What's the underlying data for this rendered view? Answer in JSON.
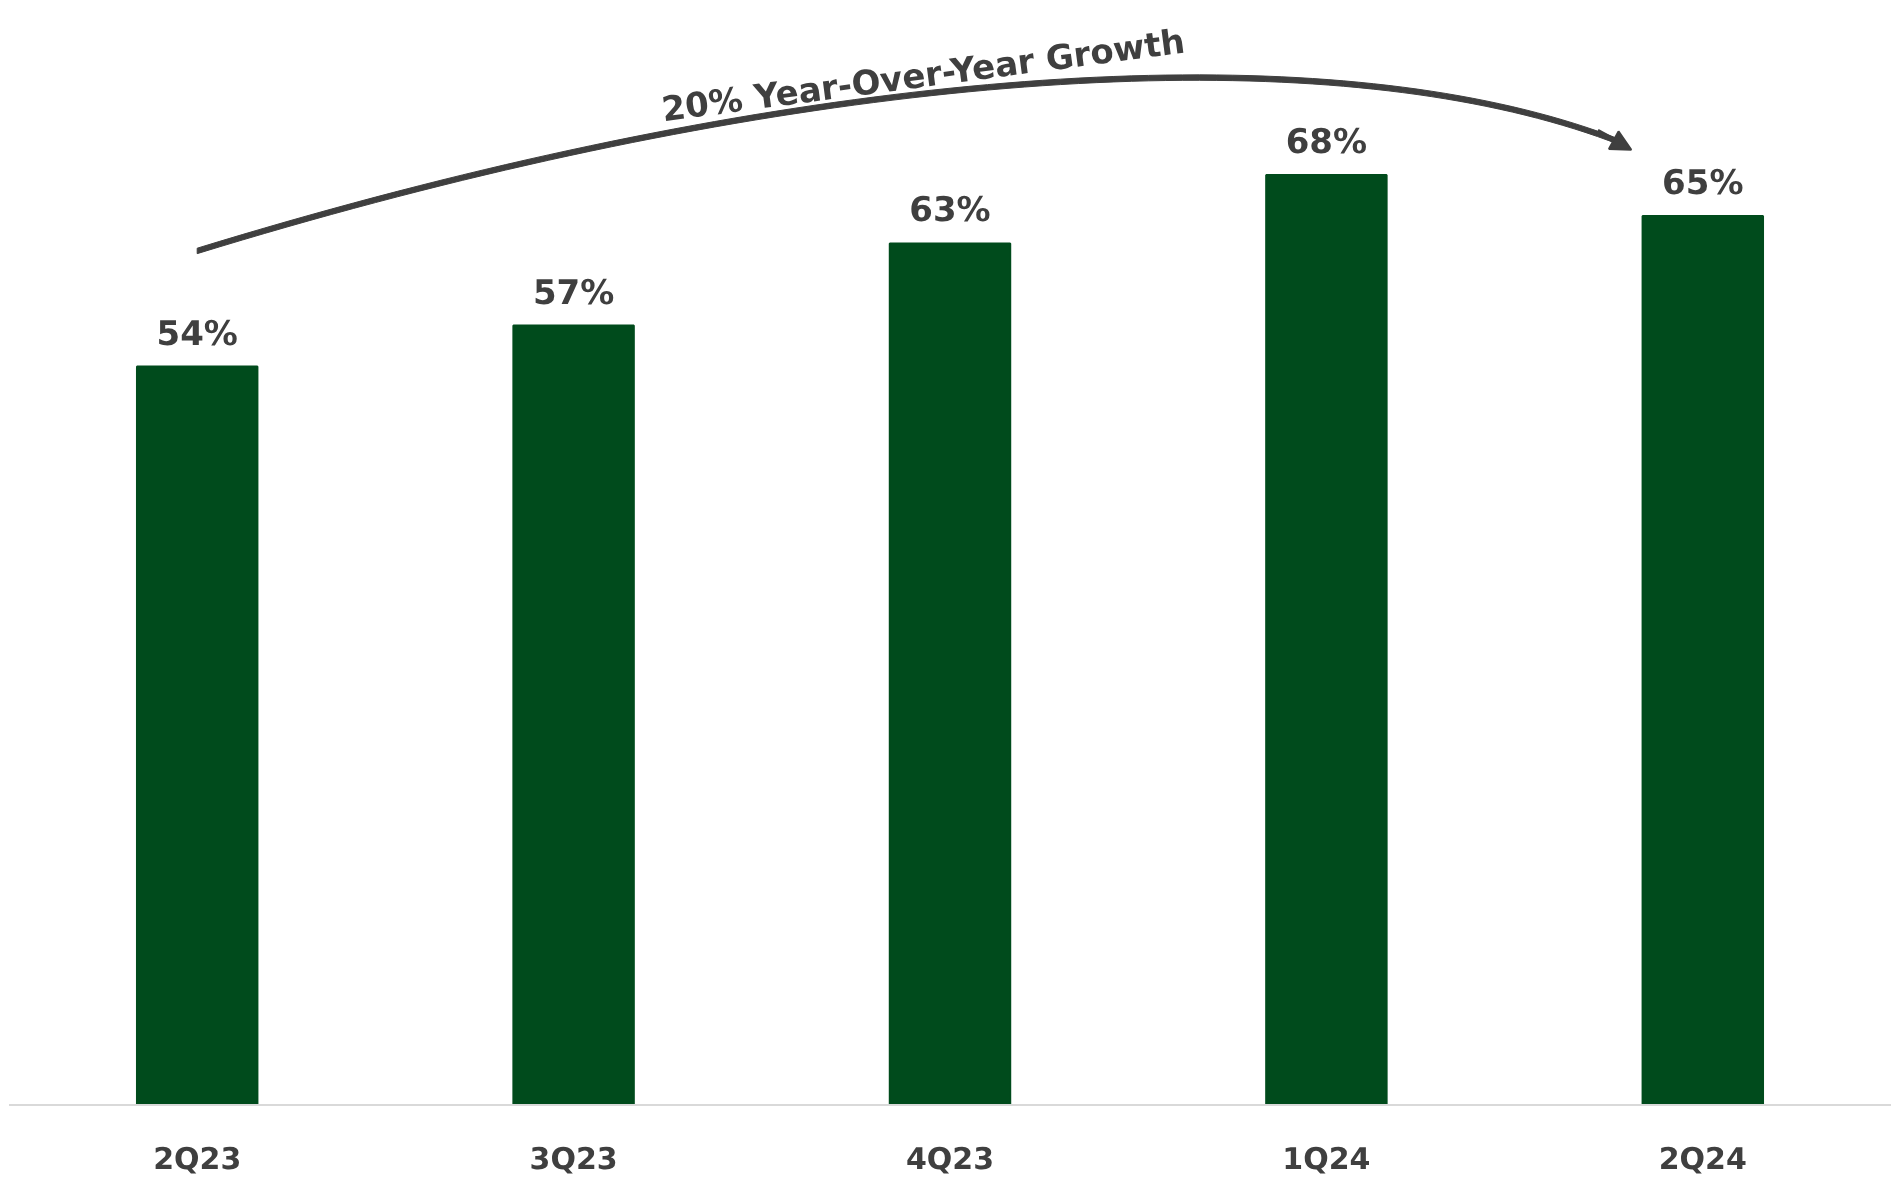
{
  "chart_data": {
    "type": "bar",
    "categories": [
      "2Q23",
      "3Q23",
      "4Q23",
      "1Q24",
      "2Q24"
    ],
    "values": [
      54,
      57,
      63,
      68,
      65
    ],
    "value_labels": [
      "54%",
      "57%",
      "63%",
      "68%",
      "65%"
    ],
    "color": "#004b1c",
    "annotations": [
      "20% Year-Over-Year Growth"
    ],
    "grid": false
  }
}
